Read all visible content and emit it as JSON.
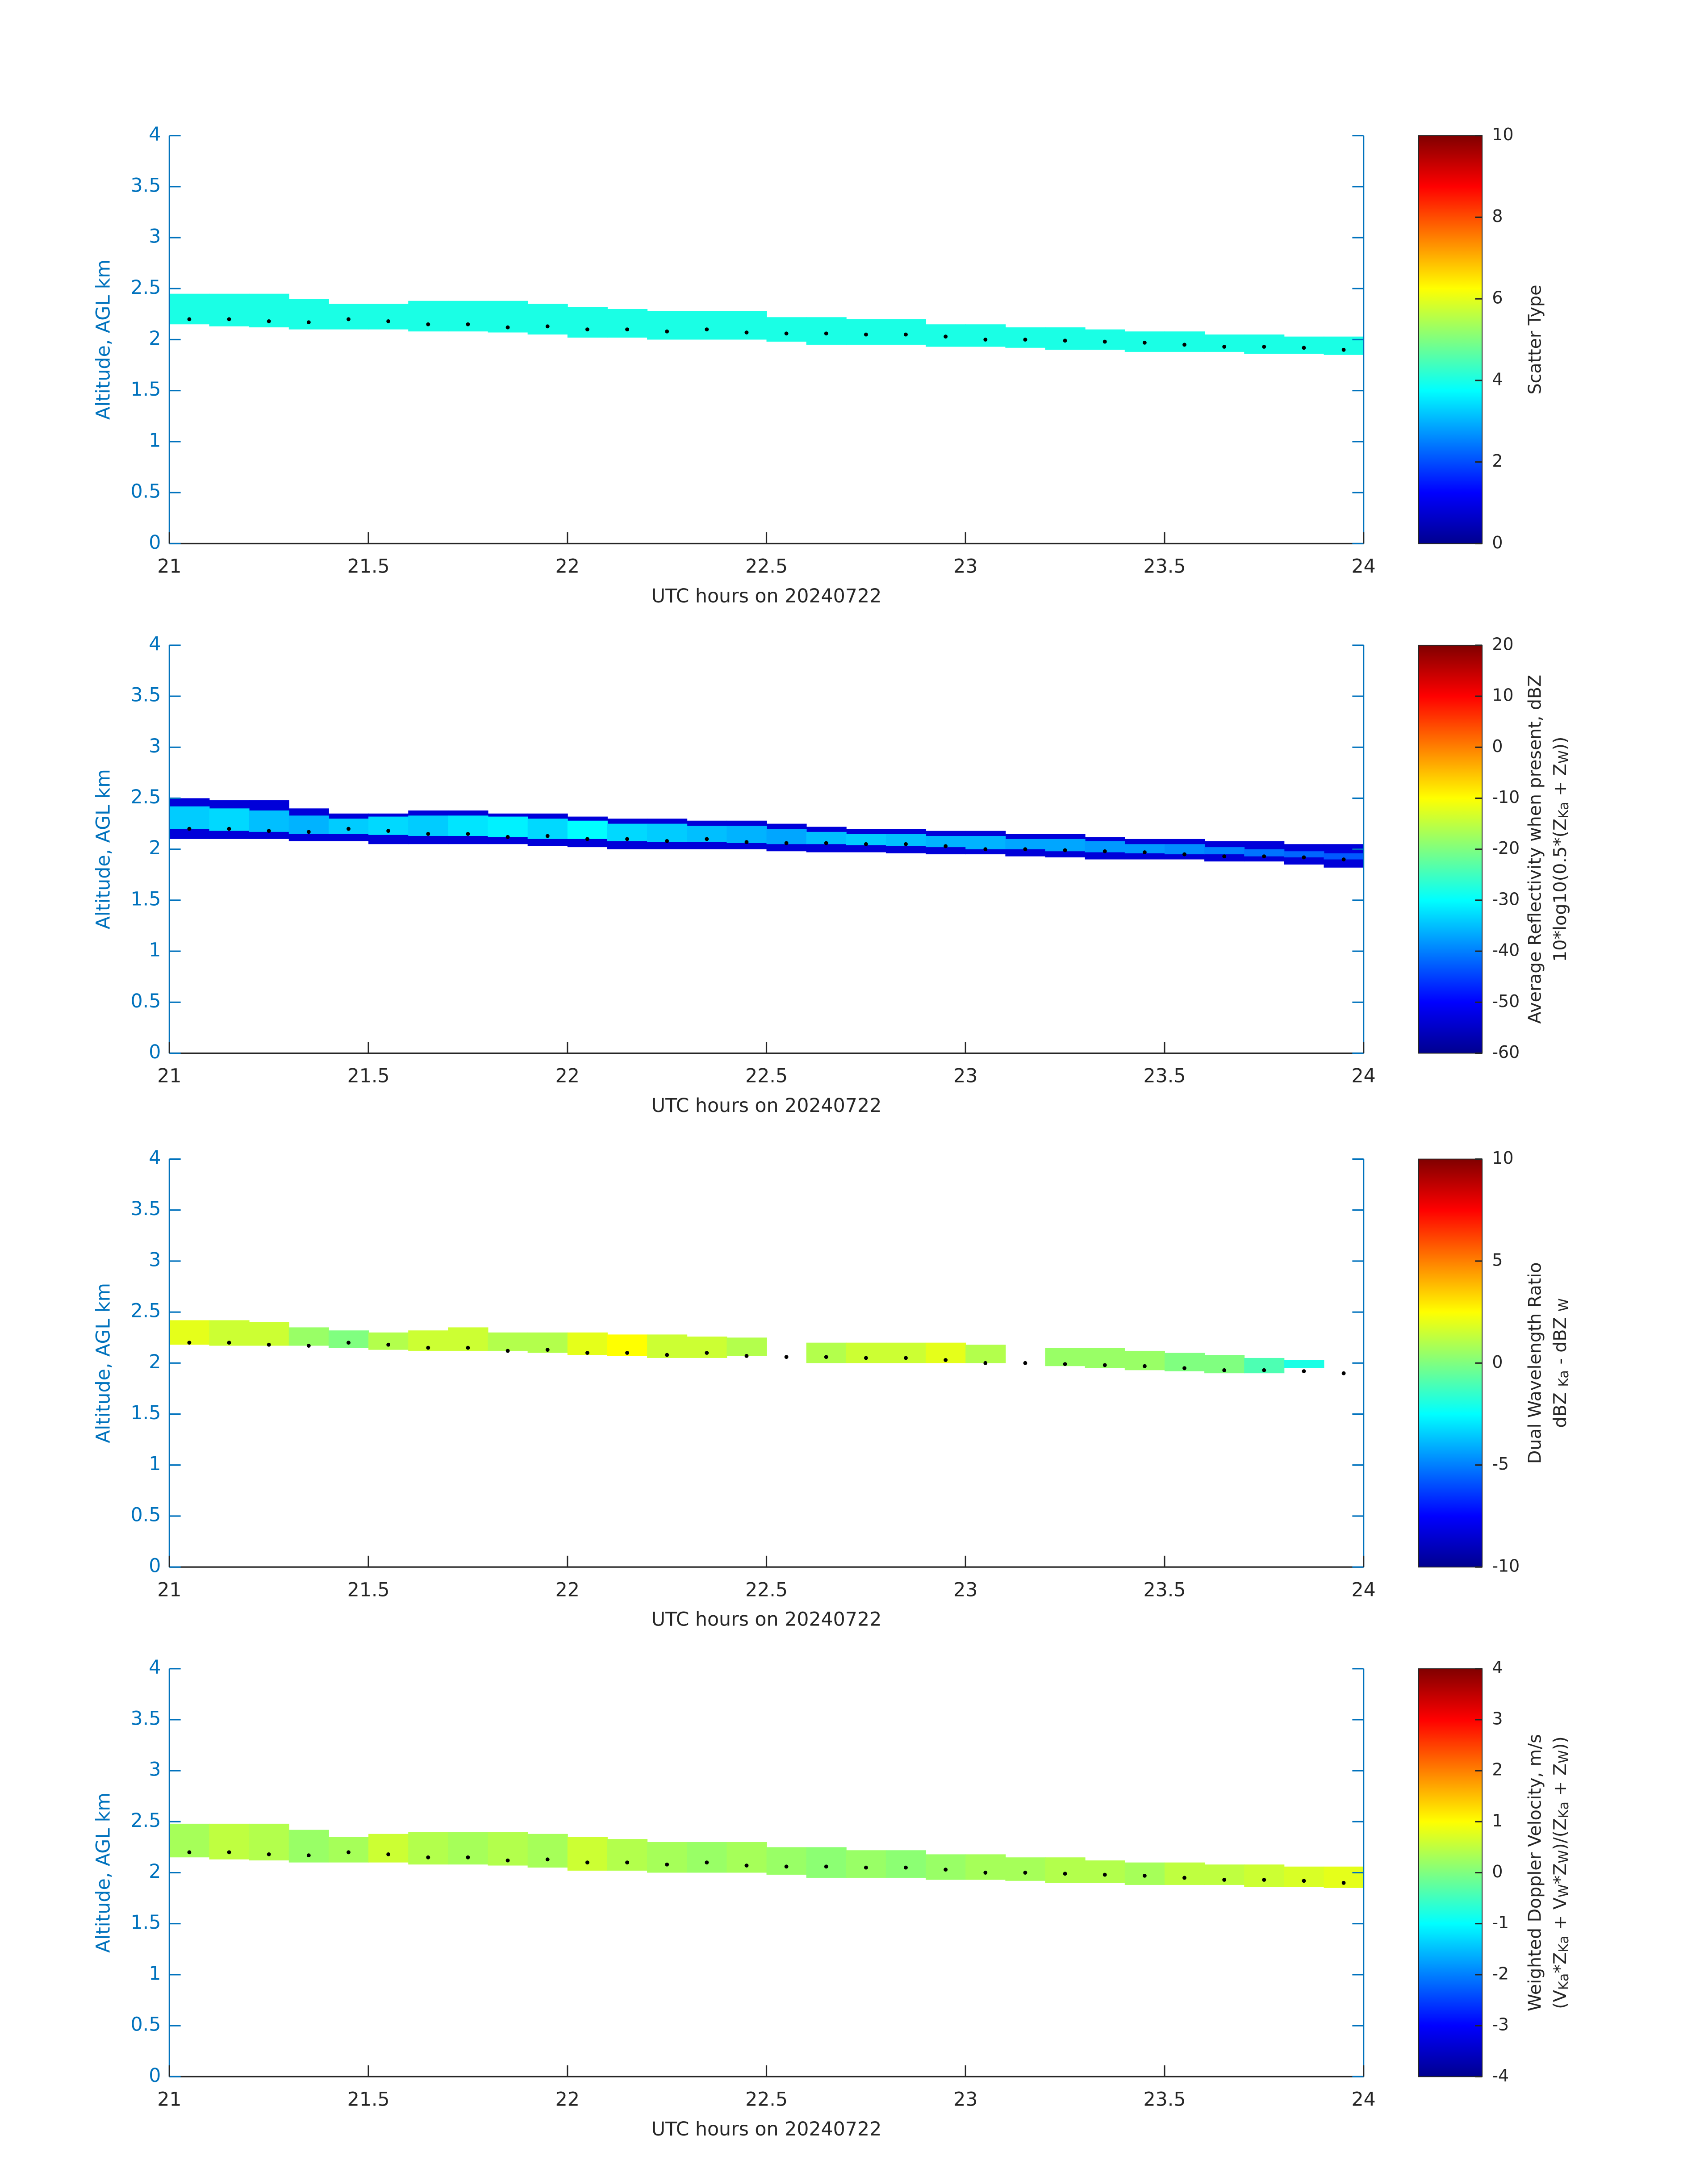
{
  "chart_data": [
    {
      "type": "heatmap",
      "colormap": "jet",
      "xlabel": "UTC hours on 20240722",
      "ylabel": "Altitude, AGL km",
      "y_axis_color": "#0072bd",
      "xlim": [
        21,
        24
      ],
      "xticks": [
        21,
        21.5,
        22,
        22.5,
        23,
        23.5,
        24
      ],
      "ylim": [
        0,
        4
      ],
      "yticks": [
        0,
        0.5,
        1,
        1.5,
        2,
        2.5,
        3,
        3.5,
        4
      ],
      "clim": [
        0,
        10
      ],
      "cticks": [
        0,
        2,
        4,
        6,
        8,
        10
      ],
      "colorbar_label": [
        [
          "Scatter Type"
        ]
      ],
      "bins": [
        21,
        21.1,
        21.2,
        21.3,
        21.4,
        21.5,
        21.6,
        21.7,
        21.8,
        21.9,
        22,
        22.1,
        22.2,
        22.3,
        22.4,
        22.5,
        22.6,
        22.7,
        22.8,
        22.9,
        23,
        23.1,
        23.2,
        23.3,
        23.4,
        23.5,
        23.6,
        23.7,
        23.8,
        23.9,
        24
      ],
      "layers": [
        {
          "top": [
            2.45,
            2.45,
            2.45,
            2.4,
            2.35,
            2.35,
            2.38,
            2.38,
            2.38,
            2.35,
            2.32,
            2.3,
            2.28,
            2.28,
            2.28,
            2.22,
            2.22,
            2.2,
            2.2,
            2.15,
            2.15,
            2.12,
            2.12,
            2.1,
            2.08,
            2.08,
            2.05,
            2.05,
            2.03,
            2.03
          ],
          "bottom": [
            2.15,
            2.13,
            2.12,
            2.1,
            2.1,
            2.1,
            2.08,
            2.08,
            2.07,
            2.05,
            2.02,
            2.02,
            2.0,
            2.0,
            2.0,
            1.98,
            1.95,
            1.95,
            1.95,
            1.93,
            1.93,
            1.92,
            1.9,
            1.9,
            1.88,
            1.88,
            1.88,
            1.86,
            1.86,
            1.85
          ],
          "values": [
            4,
            4,
            4,
            4,
            4,
            4,
            4,
            4,
            4,
            4,
            4,
            4,
            4,
            4,
            4,
            4,
            4,
            4,
            4,
            4,
            4,
            4,
            4,
            4,
            4,
            4,
            4,
            4,
            4,
            4
          ]
        }
      ],
      "dots": {
        "x": [
          21.05,
          21.15,
          21.25,
          21.35,
          21.45,
          21.55,
          21.65,
          21.75,
          21.85,
          21.95,
          22.05,
          22.15,
          22.25,
          22.35,
          22.45,
          22.55,
          22.65,
          22.75,
          22.85,
          22.95,
          23.05,
          23.15,
          23.25,
          23.35,
          23.45,
          23.55,
          23.65,
          23.75,
          23.85,
          23.95
        ],
        "values": [
          2.2,
          2.2,
          2.18,
          2.17,
          2.2,
          2.18,
          2.15,
          2.15,
          2.12,
          2.13,
          2.1,
          2.1,
          2.08,
          2.1,
          2.07,
          2.06,
          2.06,
          2.05,
          2.05,
          2.03,
          2.0,
          2.0,
          1.99,
          1.98,
          1.97,
          1.95,
          1.93,
          1.93,
          1.92,
          1.9
        ]
      }
    },
    {
      "type": "heatmap",
      "colormap": "jet",
      "xlabel": "UTC hours on 20240722",
      "ylabel": "Altitude, AGL km",
      "y_axis_color": "#0072bd",
      "xlim": [
        21,
        24
      ],
      "xticks": [
        21,
        21.5,
        22,
        22.5,
        23,
        23.5,
        24
      ],
      "ylim": [
        0,
        4
      ],
      "yticks": [
        0,
        0.5,
        1,
        1.5,
        2,
        2.5,
        3,
        3.5,
        4
      ],
      "clim": [
        -60,
        20
      ],
      "cticks": [
        -60,
        -50,
        -40,
        -30,
        -20,
        -10,
        0,
        10,
        20
      ],
      "colorbar_label": [
        [
          "Average Reflectivity when present, dBZ"
        ],
        [
          "10*log10(0.5*(Z",
          "Ka",
          " + Z",
          "W",
          "))"
        ]
      ],
      "bins": [
        21,
        21.1,
        21.2,
        21.3,
        21.4,
        21.5,
        21.6,
        21.7,
        21.8,
        21.9,
        22,
        22.1,
        22.2,
        22.3,
        22.4,
        22.5,
        22.6,
        22.7,
        22.8,
        22.9,
        23,
        23.1,
        23.2,
        23.3,
        23.4,
        23.5,
        23.6,
        23.7,
        23.8,
        23.9,
        24
      ],
      "layers": [
        {
          "top": [
            2.5,
            2.48,
            2.48,
            2.4,
            2.35,
            2.35,
            2.38,
            2.38,
            2.35,
            2.35,
            2.32,
            2.3,
            2.3,
            2.28,
            2.28,
            2.25,
            2.22,
            2.2,
            2.2,
            2.18,
            2.18,
            2.15,
            2.15,
            2.12,
            2.1,
            2.1,
            2.08,
            2.08,
            2.05,
            2.05
          ],
          "bottom": [
            2.1,
            2.1,
            2.1,
            2.08,
            2.08,
            2.05,
            2.05,
            2.05,
            2.05,
            2.03,
            2.02,
            2.0,
            2.0,
            2.0,
            2.0,
            1.98,
            1.97,
            1.97,
            1.96,
            1.95,
            1.95,
            1.93,
            1.92,
            1.9,
            1.9,
            1.9,
            1.88,
            1.88,
            1.85,
            1.82
          ],
          "values": [
            -53,
            -53,
            -53,
            -53,
            -53,
            -53,
            -53,
            -53,
            -53,
            -53,
            -53,
            -53,
            -53,
            -53,
            -53,
            -53,
            -53,
            -53,
            -53,
            -53,
            -53,
            -53,
            -53,
            -53,
            -53,
            -53,
            -53,
            -53,
            -53,
            -53
          ]
        },
        {
          "top": [
            2.42,
            2.4,
            2.38,
            2.33,
            2.3,
            2.32,
            2.33,
            2.33,
            2.32,
            2.3,
            2.28,
            2.25,
            2.25,
            2.23,
            2.23,
            2.2,
            2.17,
            2.15,
            2.15,
            2.13,
            2.13,
            2.1,
            2.1,
            2.08,
            2.05,
            2.05,
            2.02,
            2.0,
            1.98,
            1.96
          ],
          "bottom": [
            2.2,
            2.18,
            2.17,
            2.15,
            2.15,
            2.14,
            2.13,
            2.13,
            2.12,
            2.1,
            2.1,
            2.08,
            2.07,
            2.07,
            2.06,
            2.05,
            2.05,
            2.04,
            2.03,
            2.02,
            2.0,
            2.0,
            1.98,
            1.97,
            1.96,
            1.95,
            1.95,
            1.93,
            1.92,
            1.9
          ],
          "values": [
            -34,
            -33,
            -35,
            -36,
            -34,
            -33,
            -34,
            -32,
            -31,
            -33,
            -30,
            -33,
            -34,
            -35,
            -36,
            -37,
            -35,
            -34,
            -35,
            -36,
            -36,
            -37,
            -37,
            -38,
            -38,
            -39,
            -40,
            -41,
            -42,
            -43
          ]
        }
      ],
      "dots": {
        "x": [
          21.05,
          21.15,
          21.25,
          21.35,
          21.45,
          21.55,
          21.65,
          21.75,
          21.85,
          21.95,
          22.05,
          22.15,
          22.25,
          22.35,
          22.45,
          22.55,
          22.65,
          22.75,
          22.85,
          22.95,
          23.05,
          23.15,
          23.25,
          23.35,
          23.45,
          23.55,
          23.65,
          23.75,
          23.85,
          23.95
        ],
        "values": [
          2.2,
          2.2,
          2.18,
          2.17,
          2.2,
          2.18,
          2.15,
          2.15,
          2.12,
          2.13,
          2.1,
          2.1,
          2.08,
          2.1,
          2.07,
          2.06,
          2.06,
          2.05,
          2.05,
          2.03,
          2.0,
          2.0,
          1.99,
          1.98,
          1.97,
          1.95,
          1.93,
          1.93,
          1.92,
          1.9
        ]
      }
    },
    {
      "type": "heatmap",
      "colormap": "jet",
      "xlabel": "UTC hours on 20240722",
      "ylabel": "Altitude, AGL km",
      "y_axis_color": "#0072bd",
      "xlim": [
        21,
        24
      ],
      "xticks": [
        21,
        21.5,
        22,
        22.5,
        23,
        23.5,
        24
      ],
      "ylim": [
        0,
        4
      ],
      "yticks": [
        0,
        0.5,
        1,
        1.5,
        2,
        2.5,
        3,
        3.5,
        4
      ],
      "clim": [
        -10,
        10
      ],
      "cticks": [
        -10,
        -5,
        0,
        5,
        10
      ],
      "colorbar_label": [
        [
          "Dual Wavelength Ratio"
        ],
        [
          "dBZ ",
          "Ka",
          " - dBZ ",
          "W"
        ]
      ],
      "bins": [
        21,
        21.1,
        21.2,
        21.3,
        21.4,
        21.5,
        21.6,
        21.7,
        21.8,
        21.9,
        22,
        22.1,
        22.2,
        22.3,
        22.4,
        22.5,
        22.6,
        22.7,
        22.8,
        22.9,
        23,
        23.1,
        23.2,
        23.3,
        23.4,
        23.5,
        23.6,
        23.7,
        23.8,
        23.9,
        24
      ],
      "layers": [
        {
          "top": [
            2.42,
            2.42,
            2.4,
            2.35,
            2.32,
            2.3,
            2.32,
            2.35,
            2.3,
            2.3,
            2.3,
            2.28,
            2.28,
            2.26,
            2.25,
            null,
            2.2,
            2.2,
            2.2,
            2.2,
            2.18,
            null,
            2.15,
            2.15,
            2.12,
            2.1,
            2.08,
            2.05,
            2.03,
            null
          ],
          "bottom": [
            2.18,
            2.17,
            2.17,
            2.17,
            2.15,
            2.13,
            2.12,
            2.12,
            2.12,
            2.1,
            2.08,
            2.07,
            2.05,
            2.05,
            2.07,
            null,
            2.0,
            2.0,
            2.0,
            2.0,
            2.0,
            null,
            1.97,
            1.95,
            1.93,
            1.92,
            1.9,
            1.9,
            1.95,
            null
          ],
          "values": [
            2,
            1.5,
            1.5,
            0.5,
            0,
            1,
            1.5,
            1.5,
            1,
            1,
            2,
            2.5,
            1.5,
            1.5,
            1,
            null,
            1,
            1.5,
            1.5,
            2,
            1,
            null,
            0.5,
            0.5,
            0.5,
            0,
            0,
            -1,
            -2,
            null
          ]
        }
      ],
      "dots": {
        "x": [
          21.05,
          21.15,
          21.25,
          21.35,
          21.45,
          21.55,
          21.65,
          21.75,
          21.85,
          21.95,
          22.05,
          22.15,
          22.25,
          22.35,
          22.45,
          22.55,
          22.65,
          22.75,
          22.85,
          22.95,
          23.05,
          23.15,
          23.25,
          23.35,
          23.45,
          23.55,
          23.65,
          23.75,
          23.85,
          23.95
        ],
        "values": [
          2.2,
          2.2,
          2.18,
          2.17,
          2.2,
          2.18,
          2.15,
          2.15,
          2.12,
          2.13,
          2.1,
          2.1,
          2.08,
          2.1,
          2.07,
          2.06,
          2.06,
          2.05,
          2.05,
          2.03,
          2.0,
          2.0,
          1.99,
          1.98,
          1.97,
          1.95,
          1.93,
          1.93,
          1.92,
          1.9
        ]
      }
    },
    {
      "type": "heatmap",
      "colormap": "jet",
      "xlabel": "UTC hours on 20240722",
      "ylabel": "Altitude, AGL km",
      "y_axis_color": "#0072bd",
      "xlim": [
        21,
        24
      ],
      "xticks": [
        21,
        21.5,
        22,
        22.5,
        23,
        23.5,
        24
      ],
      "ylim": [
        0,
        4
      ],
      "yticks": [
        0,
        0.5,
        1,
        1.5,
        2,
        2.5,
        3,
        3.5,
        4
      ],
      "clim": [
        -4,
        4
      ],
      "cticks": [
        -4,
        -3,
        -2,
        -1,
        0,
        1,
        2,
        3,
        4
      ],
      "colorbar_label": [
        [
          "Weighted Doppler Velocity, m/s"
        ],
        [
          "(V",
          "Ka",
          "*Z",
          "Ka",
          " + V",
          "W",
          "*Z",
          "W",
          ")/(Z",
          "Ka",
          " + Z",
          "W",
          "))"
        ]
      ],
      "bins": [
        21,
        21.1,
        21.2,
        21.3,
        21.4,
        21.5,
        21.6,
        21.7,
        21.8,
        21.9,
        22,
        22.1,
        22.2,
        22.3,
        22.4,
        22.5,
        22.6,
        22.7,
        22.8,
        22.9,
        23,
        23.1,
        23.2,
        23.3,
        23.4,
        23.5,
        23.6,
        23.7,
        23.8,
        23.9,
        24
      ],
      "layers": [
        {
          "top": [
            2.48,
            2.48,
            2.48,
            2.42,
            2.35,
            2.38,
            2.4,
            2.4,
            2.4,
            2.38,
            2.35,
            2.33,
            2.3,
            2.3,
            2.3,
            2.25,
            2.25,
            2.22,
            2.22,
            2.18,
            2.18,
            2.15,
            2.15,
            2.12,
            2.1,
            2.1,
            2.08,
            2.08,
            2.06,
            2.06
          ],
          "bottom": [
            2.15,
            2.13,
            2.12,
            2.1,
            2.1,
            2.1,
            2.08,
            2.08,
            2.07,
            2.05,
            2.02,
            2.02,
            2.0,
            2.0,
            2.0,
            1.98,
            1.95,
            1.95,
            1.95,
            1.93,
            1.93,
            1.92,
            1.9,
            1.9,
            1.88,
            1.88,
            1.88,
            1.86,
            1.86,
            1.85
          ],
          "values": [
            0.3,
            0.5,
            0.4,
            0.2,
            0.3,
            0.6,
            0.4,
            0.3,
            0.4,
            0.3,
            0.6,
            0.4,
            0.3,
            0.2,
            0.3,
            0.2,
            0.1,
            0.2,
            0.1,
            0.2,
            0.3,
            0.3,
            0.4,
            0.4,
            0.3,
            0.5,
            0.5,
            0.6,
            0.7,
            0.8
          ]
        }
      ],
      "dots": {
        "x": [
          21.05,
          21.15,
          21.25,
          21.35,
          21.45,
          21.55,
          21.65,
          21.75,
          21.85,
          21.95,
          22.05,
          22.15,
          22.25,
          22.35,
          22.45,
          22.55,
          22.65,
          22.75,
          22.85,
          22.95,
          23.05,
          23.15,
          23.25,
          23.35,
          23.45,
          23.55,
          23.65,
          23.75,
          23.85,
          23.95
        ],
        "values": [
          2.2,
          2.2,
          2.18,
          2.17,
          2.2,
          2.18,
          2.15,
          2.15,
          2.12,
          2.13,
          2.1,
          2.1,
          2.08,
          2.1,
          2.07,
          2.06,
          2.06,
          2.05,
          2.05,
          2.03,
          2.0,
          2.0,
          1.99,
          1.98,
          1.97,
          1.95,
          1.93,
          1.93,
          1.92,
          1.9
        ]
      }
    }
  ]
}
